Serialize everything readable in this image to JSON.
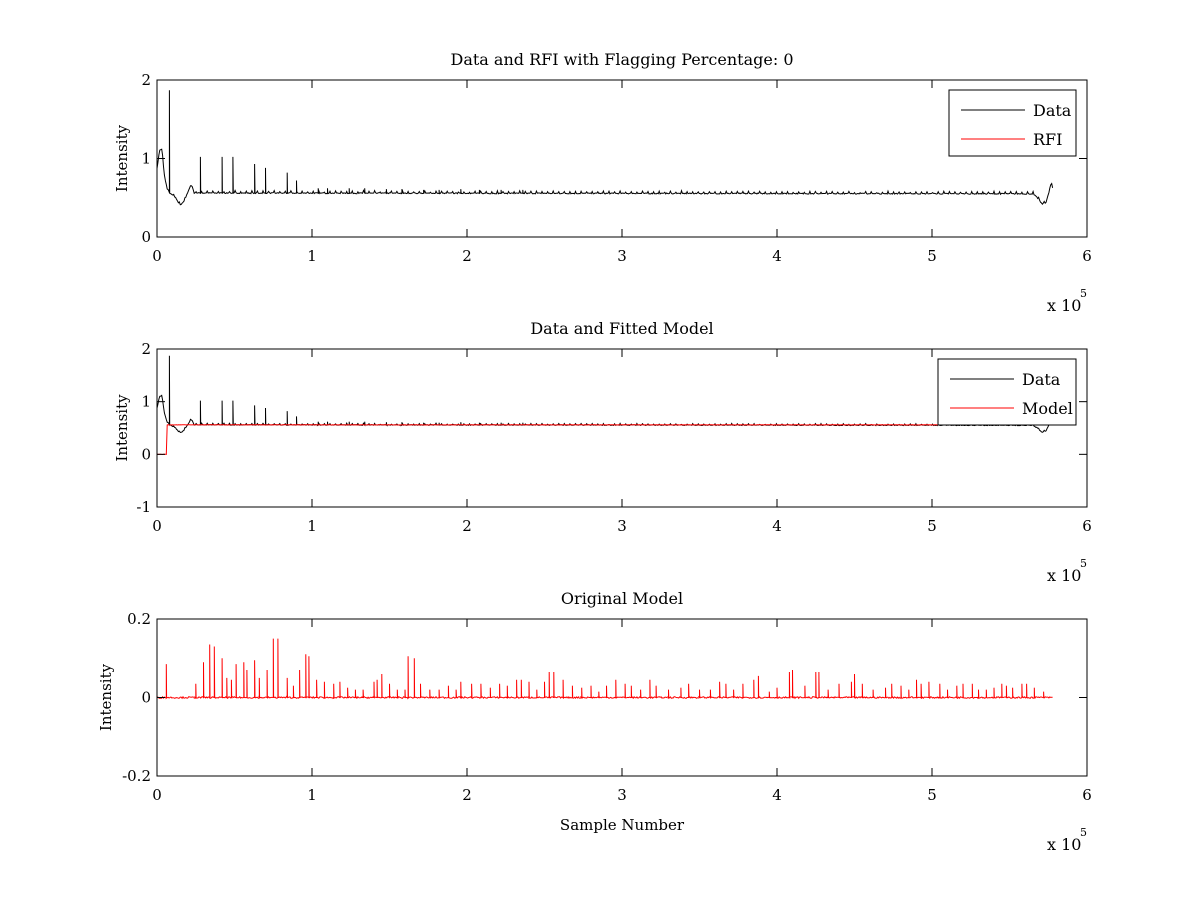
{
  "figure": {
    "background": "#ffffff"
  },
  "chart_data": [
    {
      "type": "line",
      "title": "Data and RFI with Flagging Percentage: 0",
      "xlabel": "",
      "ylabel": "Intensity",
      "xlim": [
        0,
        600000
      ],
      "ylim": [
        0,
        2
      ],
      "xticks": [
        0,
        100000,
        200000,
        300000,
        400000,
        500000,
        600000
      ],
      "xtick_labels": [
        "0",
        "1",
        "2",
        "3",
        "4",
        "5",
        "6"
      ],
      "x_multiplier_text": "x 10",
      "x_multiplier_exp": "5",
      "yticks": [
        0,
        1,
        2
      ],
      "ytick_labels": [
        "0",
        "1",
        "2"
      ],
      "grid": false,
      "legend": {
        "placement": "top-right",
        "entries": [
          {
            "name": "Data",
            "color": "#000000"
          },
          {
            "name": "RFI",
            "color": "#ff0000"
          }
        ]
      },
      "series": [
        {
          "name": "Data",
          "color": "#000000",
          "baseline": 0.55,
          "x_range": [
            0,
            578000
          ],
          "shape": [
            [
              0,
              0.85
            ],
            [
              1500,
              1.1
            ],
            [
              3000,
              1.12
            ],
            [
              5000,
              0.75
            ],
            [
              7000,
              0.58
            ],
            [
              9000,
              0.55
            ],
            [
              12000,
              0.5
            ],
            [
              14500,
              0.41
            ],
            [
              16000,
              0.42
            ],
            [
              18000,
              0.48
            ],
            [
              21000,
              0.62
            ],
            [
              22500,
              0.66
            ],
            [
              24000,
              0.56
            ],
            [
              565000,
              0.55
            ],
            [
              568000,
              0.5
            ],
            [
              571000,
              0.42
            ],
            [
              573500,
              0.44
            ],
            [
              576000,
              0.6
            ],
            [
              577000,
              0.7
            ],
            [
              578000,
              0.6
            ]
          ],
          "spikes": [
            [
              8000,
              1.87
            ],
            [
              28000,
              1.02
            ],
            [
              42000,
              1.02
            ],
            [
              49000,
              1.02
            ],
            [
              63000,
              0.93
            ],
            [
              70000,
              0.88
            ],
            [
              84000,
              0.82
            ],
            [
              90000,
              0.72
            ],
            [
              104000,
              0.62
            ],
            [
              110000,
              0.62
            ],
            [
              124000,
              0.62
            ],
            [
              134000,
              0.62
            ],
            [
              148000,
              0.61
            ],
            [
              158000,
              0.61
            ],
            [
              172000,
              0.6
            ],
            [
              182000,
              0.6
            ],
            [
              196000,
              0.61
            ],
            [
              208000,
              0.6
            ],
            [
              222000,
              0.6
            ],
            [
              236000,
              0.6
            ]
          ],
          "spike_period": 3500,
          "spike_height": 0.03,
          "noise": 0.006
        }
      ]
    },
    {
      "type": "line",
      "title": "Data and Fitted Model",
      "xlabel": "",
      "ylabel": "Intensity",
      "xlim": [
        0,
        600000
      ],
      "ylim": [
        -1,
        2
      ],
      "xticks": [
        0,
        100000,
        200000,
        300000,
        400000,
        500000,
        600000
      ],
      "xtick_labels": [
        "0",
        "1",
        "2",
        "3",
        "4",
        "5",
        "6"
      ],
      "x_multiplier_text": "x 10",
      "x_multiplier_exp": "5",
      "yticks": [
        -1,
        0,
        1,
        2
      ],
      "ytick_labels": [
        "-1",
        "0",
        "1",
        "2"
      ],
      "grid": false,
      "legend": {
        "placement": "top-right",
        "entries": [
          {
            "name": "Data",
            "color": "#000000"
          },
          {
            "name": "Model",
            "color": "#ff0000"
          }
        ]
      },
      "series": [
        {
          "name": "Data",
          "color": "#000000",
          "baseline": 0.55,
          "x_range": [
            0,
            578000
          ],
          "shape": [
            [
              0,
              0.85
            ],
            [
              1500,
              1.1
            ],
            [
              3000,
              1.12
            ],
            [
              5000,
              0.75
            ],
            [
              7000,
              0.58
            ],
            [
              9000,
              0.55
            ],
            [
              12000,
              0.5
            ],
            [
              14500,
              0.41
            ],
            [
              16000,
              0.42
            ],
            [
              18000,
              0.48
            ],
            [
              21000,
              0.62
            ],
            [
              22500,
              0.66
            ],
            [
              24000,
              0.56
            ],
            [
              565000,
              0.55
            ],
            [
              568000,
              0.5
            ],
            [
              571000,
              0.42
            ],
            [
              573500,
              0.44
            ],
            [
              576000,
              0.6
            ],
            [
              577000,
              0.7
            ],
            [
              578000,
              0.6
            ]
          ],
          "spikes": [
            [
              8000,
              1.87
            ],
            [
              28000,
              1.02
            ],
            [
              42000,
              1.02
            ],
            [
              49000,
              1.02
            ],
            [
              63000,
              0.93
            ],
            [
              70000,
              0.88
            ],
            [
              84000,
              0.82
            ],
            [
              90000,
              0.72
            ],
            [
              104000,
              0.62
            ],
            [
              110000,
              0.62
            ],
            [
              124000,
              0.62
            ],
            [
              134000,
              0.62
            ],
            [
              148000,
              0.61
            ],
            [
              158000,
              0.61
            ],
            [
              172000,
              0.6
            ],
            [
              182000,
              0.6
            ],
            [
              196000,
              0.61
            ],
            [
              208000,
              0.6
            ],
            [
              222000,
              0.6
            ],
            [
              236000,
              0.6
            ]
          ],
          "spike_period": 3500,
          "spike_height": 0.03,
          "noise": 0.006
        },
        {
          "name": "Model",
          "color": "#ff0000",
          "baseline": 0.56,
          "x_range": [
            0,
            578000
          ],
          "shape": [
            [
              0,
              0.0
            ],
            [
              6000,
              0.0
            ],
            [
              6500,
              0.56
            ],
            [
              578000,
              0.56
            ]
          ],
          "spikes": [],
          "noise": 0.003
        }
      ]
    },
    {
      "type": "line",
      "title": "Original Model",
      "xlabel": "Sample Number",
      "ylabel": "Intensity",
      "xlim": [
        0,
        600000
      ],
      "ylim": [
        -0.2,
        0.2
      ],
      "xticks": [
        0,
        100000,
        200000,
        300000,
        400000,
        500000,
        600000
      ],
      "xtick_labels": [
        "0",
        "1",
        "2",
        "3",
        "4",
        "5",
        "6"
      ],
      "x_multiplier_text": "x 10",
      "x_multiplier_exp": "5",
      "yticks": [
        -0.2,
        0,
        0.2
      ],
      "ytick_labels": [
        "-0.2",
        "0",
        "0.2"
      ],
      "grid": false,
      "legend": null,
      "series": [
        {
          "name": "",
          "color": "#ff0000",
          "baseline": 0.0,
          "x_range": [
            0,
            578000
          ],
          "shape": [],
          "spikes": [
            [
              6000,
              0.085
            ],
            [
              25000,
              0.035
            ],
            [
              30000,
              0.09
            ],
            [
              34000,
              0.135
            ],
            [
              37000,
              0.13
            ],
            [
              42000,
              0.1
            ],
            [
              45000,
              0.05
            ],
            [
              48000,
              0.045
            ],
            [
              51000,
              0.085
            ],
            [
              56000,
              0.09
            ],
            [
              58000,
              0.07
            ],
            [
              63000,
              0.095
            ],
            [
              66000,
              0.05
            ],
            [
              71000,
              0.07
            ],
            [
              75000,
              0.15
            ],
            [
              78000,
              0.15
            ],
            [
              84000,
              0.05
            ],
            [
              88000,
              0.03
            ],
            [
              92000,
              0.07
            ],
            [
              96000,
              0.11
            ],
            [
              98000,
              0.105
            ],
            [
              103000,
              0.045
            ],
            [
              108000,
              0.04
            ],
            [
              114000,
              0.035
            ],
            [
              118000,
              0.04
            ],
            [
              123000,
              0.025
            ],
            [
              128000,
              0.02
            ],
            [
              133000,
              0.02
            ],
            [
              140000,
              0.04
            ],
            [
              142000,
              0.045
            ],
            [
              145000,
              0.06
            ],
            [
              150000,
              0.035
            ],
            [
              155000,
              0.02
            ],
            [
              160000,
              0.02
            ],
            [
              162000,
              0.105
            ],
            [
              166000,
              0.1
            ],
            [
              170000,
              0.035
            ],
            [
              176000,
              0.02
            ],
            [
              182000,
              0.02
            ],
            [
              188000,
              0.03
            ],
            [
              193000,
              0.02
            ],
            [
              196000,
              0.04
            ],
            [
              203000,
              0.035
            ],
            [
              209000,
              0.035
            ],
            [
              215000,
              0.025
            ],
            [
              221000,
              0.035
            ],
            [
              226000,
              0.03
            ],
            [
              232000,
              0.045
            ],
            [
              235000,
              0.045
            ],
            [
              240000,
              0.04
            ],
            [
              245000,
              0.02
            ],
            [
              250000,
              0.04
            ],
            [
              253000,
              0.065
            ],
            [
              256000,
              0.065
            ],
            [
              262000,
              0.045
            ],
            [
              268000,
              0.03
            ],
            [
              274000,
              0.025
            ],
            [
              280000,
              0.03
            ],
            [
              285000,
              0.015
            ],
            [
              290000,
              0.03
            ],
            [
              296000,
              0.045
            ],
            [
              302000,
              0.035
            ],
            [
              306000,
              0.03
            ],
            [
              312000,
              0.02
            ],
            [
              318000,
              0.045
            ],
            [
              322000,
              0.03
            ],
            [
              330000,
              0.02
            ],
            [
              338000,
              0.025
            ],
            [
              343000,
              0.035
            ],
            [
              350000,
              0.02
            ],
            [
              357000,
              0.02
            ],
            [
              363000,
              0.04
            ],
            [
              367000,
              0.035
            ],
            [
              372000,
              0.02
            ],
            [
              378000,
              0.035
            ],
            [
              385000,
              0.045
            ],
            [
              388000,
              0.055
            ],
            [
              395000,
              0.015
            ],
            [
              400000,
              0.025
            ],
            [
              408000,
              0.065
            ],
            [
              410000,
              0.07
            ],
            [
              418000,
              0.03
            ],
            [
              425000,
              0.065
            ],
            [
              427000,
              0.065
            ],
            [
              433000,
              0.02
            ],
            [
              440000,
              0.035
            ],
            [
              448000,
              0.04
            ],
            [
              450000,
              0.06
            ],
            [
              455000,
              0.035
            ],
            [
              462000,
              0.02
            ],
            [
              470000,
              0.025
            ],
            [
              474000,
              0.035
            ],
            [
              480000,
              0.03
            ],
            [
              485000,
              0.02
            ],
            [
              490000,
              0.045
            ],
            [
              493000,
              0.035
            ],
            [
              498000,
              0.04
            ],
            [
              505000,
              0.035
            ],
            [
              510000,
              0.02
            ],
            [
              516000,
              0.03
            ],
            [
              520000,
              0.035
            ],
            [
              526000,
              0.035
            ],
            [
              530000,
              0.02
            ],
            [
              535000,
              0.02
            ],
            [
              540000,
              0.025
            ],
            [
              545000,
              0.035
            ],
            [
              548000,
              0.03
            ],
            [
              552000,
              0.025
            ],
            [
              558000,
              0.035
            ],
            [
              561000,
              0.035
            ],
            [
              566000,
              0.025
            ],
            [
              572000,
              0.015
            ]
          ],
          "spike_period": 0,
          "spike_height": 0,
          "noise": 0.002
        }
      ]
    }
  ]
}
